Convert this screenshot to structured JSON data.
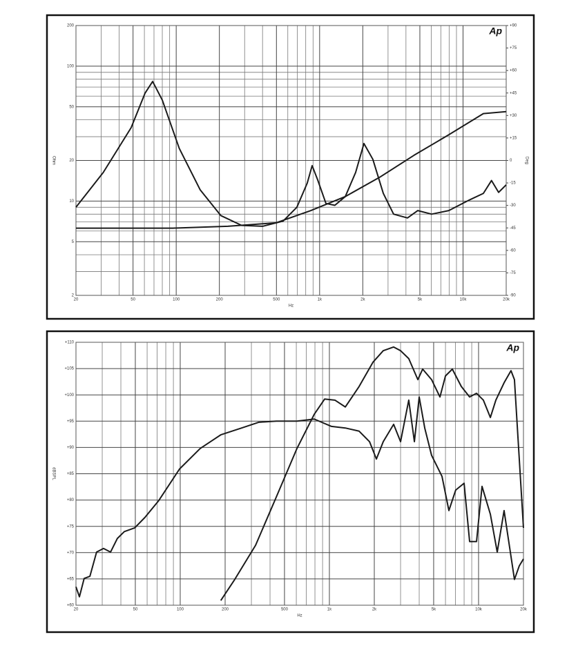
{
  "chart_data": [
    {
      "type": "line",
      "logo": "Ap",
      "x_label": "Hz",
      "y_label": "Ohm",
      "y2_label": "Deg",
      "xscale": "log",
      "yscale": "log",
      "grid": true,
      "minor_grid": true,
      "xlim": [
        20,
        20000
      ],
      "xticks": [
        20,
        50,
        100,
        200,
        500,
        {
          "value": 1000,
          "label": "1k"
        },
        {
          "value": 2000,
          "label": "2k"
        },
        {
          "value": 5000,
          "label": "5k"
        },
        {
          "value": 10000,
          "label": "10k"
        },
        {
          "value": 20000,
          "label": "20k"
        }
      ],
      "ylim": [
        2,
        200
      ],
      "yticks": [
        2,
        5,
        10,
        20,
        50,
        100,
        200
      ],
      "y2lim": [
        -90,
        90
      ],
      "y2ticks": [
        -90,
        -75,
        -60,
        -45,
        -30,
        -15,
        0,
        {
          "value": 15,
          "label": "+15"
        },
        {
          "value": 30,
          "label": "+30"
        },
        {
          "value": 45,
          "label": "+45"
        },
        {
          "value": 60,
          "label": "+60"
        },
        {
          "value": 75,
          "label": "+75"
        },
        {
          "value": 90,
          "label": "+90"
        }
      ],
      "series": [
        {
          "color": "#1a1a1a",
          "x": [
            20,
            31,
            48.5,
            60.6,
            68.5,
            80,
            105,
            147,
            205,
            286,
            400,
            556,
            694,
            820,
            887,
            968,
            1107,
            1277,
            1510,
            1783,
            2037,
            2350,
            2780,
            3280,
            4100,
            4830,
            6040,
            7960,
            11100,
            13860,
            15800,
            17700,
            20000
          ],
          "values": [
            9.0,
            16.3,
            35,
            63,
            77,
            56,
            24.6,
            12.1,
            7.8,
            6.6,
            6.5,
            7.1,
            9.0,
            13.6,
            18.3,
            14.4,
            9.6,
            9.3,
            10.8,
            16.3,
            26.7,
            20.4,
            11.4,
            8.0,
            7.5,
            8.5,
            8.0,
            8.5,
            10.2,
            11.4,
            14.2,
            11.6,
            13.2
          ]
        },
        {
          "color": "#1a1a1a",
          "x": [
            20,
            95,
            229,
            498,
            867,
            1510,
            2620,
            4570,
            7960,
            13860,
            20000
          ],
          "values": [
            6.3,
            6.3,
            6.5,
            6.9,
            8.5,
            10.8,
            15.0,
            21.9,
            31,
            44.5,
            46
          ]
        }
      ]
    },
    {
      "type": "line",
      "logo": "Ap",
      "x_label": "Hz",
      "y_label": "dBSPL",
      "xscale": "log",
      "yscale": "linear",
      "grid": true,
      "minor_grid": true,
      "xlim": [
        20,
        20000
      ],
      "xticks": [
        20,
        50,
        100,
        200,
        500,
        {
          "value": 1000,
          "label": "1k"
        },
        {
          "value": 2000,
          "label": "2k"
        },
        {
          "value": 5000,
          "label": "5k"
        },
        {
          "value": 10000,
          "label": "10k"
        },
        {
          "value": 20000,
          "label": "20k"
        }
      ],
      "ylim": [
        60,
        110
      ],
      "yticks": [
        {
          "value": 60,
          "label": "+60"
        },
        {
          "value": 65,
          "label": "+65"
        },
        {
          "value": 70,
          "label": "+70"
        },
        {
          "value": 75,
          "label": "+75"
        },
        {
          "value": 80,
          "label": "+80"
        },
        {
          "value": 85,
          "label": "+85"
        },
        {
          "value": 90,
          "label": "+90"
        },
        {
          "value": 95,
          "label": "+95"
        },
        {
          "value": 100,
          "label": "+100"
        },
        {
          "value": 105,
          "label": "+105"
        },
        {
          "value": 110,
          "label": "+110"
        }
      ],
      "series": [
        {
          "color": "#1a1a1a",
          "x": [
            20,
            21.1,
            22.7,
            24.8,
            27.5,
            30.6,
            34.1,
            37.9,
            42.2,
            49.5,
            58,
            71.8,
            98.9,
            136,
            187,
            258,
            337,
            441,
            606,
            791,
            1033,
            1279,
            1582,
            1858,
            2066,
            2296,
            2696,
            3000,
            3404,
            3714,
            4000,
            4357,
            4843,
            5687,
            6325,
            7030,
            7998,
            8710,
            9690,
            10550,
            12000,
            13340,
            14830,
            17400,
            18760,
            20000
          ],
          "values": [
            63.5,
            61.6,
            65.1,
            65.5,
            70.1,
            70.8,
            70.1,
            72.7,
            74.0,
            74.7,
            76.7,
            79.9,
            85.9,
            89.8,
            92.4,
            93.7,
            94.8,
            95.0,
            95.0,
            95.4,
            94.0,
            93.7,
            93.1,
            91.1,
            87.8,
            91.1,
            94.4,
            91.1,
            99.0,
            91.1,
            99.6,
            93.7,
            88.5,
            84.5,
            78.0,
            81.9,
            83.2,
            72.1,
            72.1,
            82.6,
            77.3,
            70.1,
            78.0,
            64.9,
            67.5,
            68.8
          ]
        },
        {
          "color": "#1a1a1a",
          "x": [
            187,
            232,
            320,
            441,
            606,
            791,
            929,
            1089,
            1279,
            1582,
            1958,
            2296,
            2696,
            3000,
            3404,
            3918,
            4219,
            4843,
            5510,
            6000,
            6670,
            7660,
            8710,
            9690,
            10770,
            12000,
            13060,
            14830,
            16500,
            17400,
            20000
          ],
          "values": [
            60.9,
            64.9,
            71.4,
            80.6,
            89.8,
            96.3,
            99.2,
            99.0,
            97.7,
            101.6,
            106.2,
            108.4,
            109.1,
            108.4,
            106.9,
            102.9,
            104.9,
            102.9,
            99.6,
            103.6,
            104.9,
            101.6,
            99.6,
            100.3,
            99.0,
            95.7,
            99.0,
            102.3,
            104.6,
            102.9,
            74.7
          ]
        }
      ]
    }
  ]
}
